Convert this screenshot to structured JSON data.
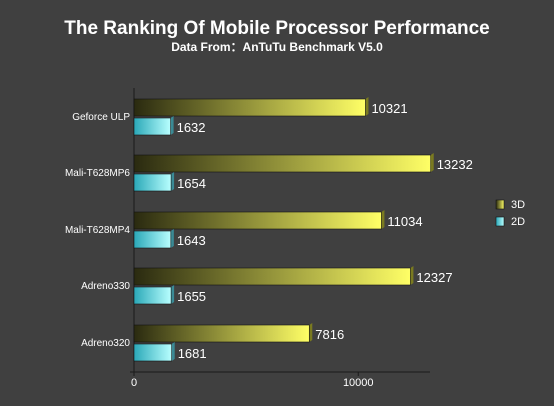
{
  "title": "The Ranking Of Mobile Processor Performance",
  "subtitle": "Data From：AnTuTu Benchmark V5.0",
  "colors": {
    "background": "#404040",
    "bar_3d_light": "#ffff66",
    "bar_3d_dark": "#2a2a10",
    "bar_2d_light": "#b8ffff",
    "bar_2d_dark": "#2aa8b8",
    "text": "#ffffff"
  },
  "chart_data": {
    "type": "bar",
    "orientation": "horizontal",
    "title": "The Ranking Of Mobile Processor Performance",
    "subtitle": "Data From：AnTuTu Benchmark V5.0",
    "categories": [
      "Geforce ULP",
      "Mali-T628MP6",
      "Mali-T628MP4",
      "Adreno330",
      "Adreno320"
    ],
    "series": [
      {
        "name": "3D",
        "values": [
          10321,
          13232,
          11034,
          12327,
          7816
        ]
      },
      {
        "name": "2D",
        "values": [
          1632,
          1654,
          1643,
          1655,
          1681
        ]
      }
    ],
    "xlim": [
      0,
      13200
    ],
    "xticks": [
      0,
      10000
    ],
    "legend": "right",
    "grid": false,
    "data_labels": true
  }
}
